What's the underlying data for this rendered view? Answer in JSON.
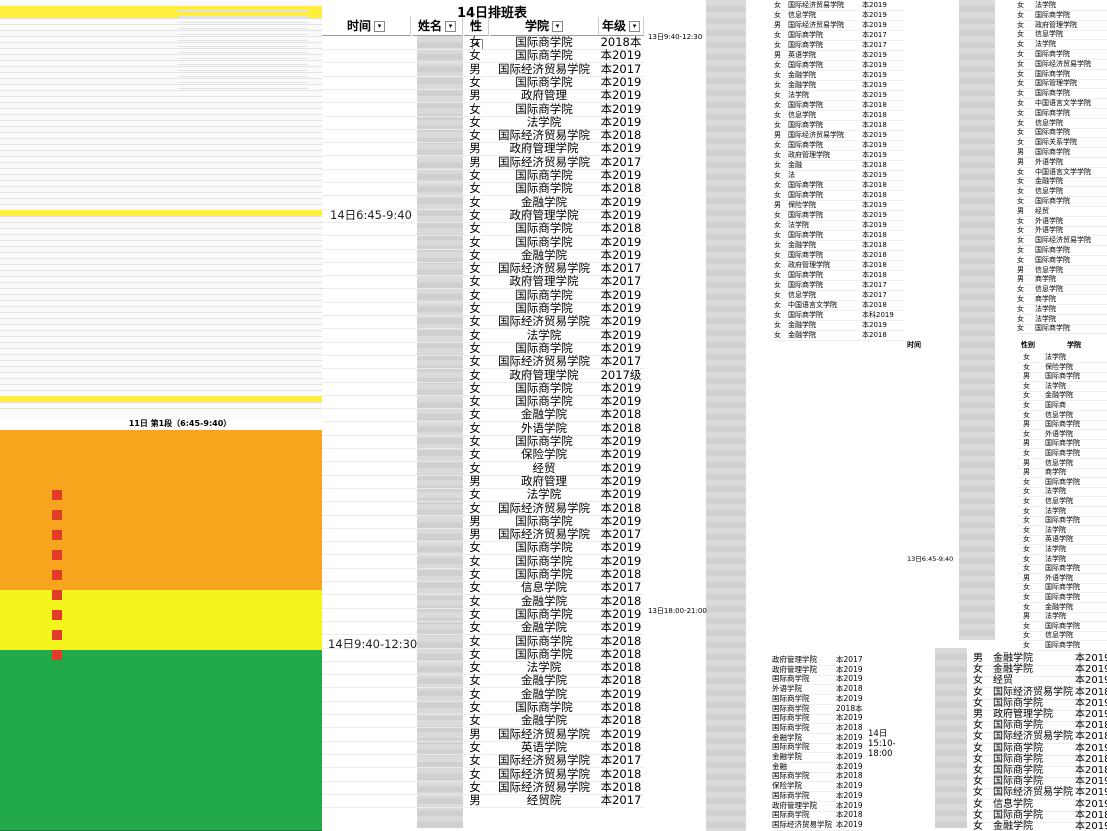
{
  "main": {
    "title": "14日排班表",
    "headers": {
      "time": "时间",
      "name": "姓名",
      "gender": "性",
      "college": "学院",
      "year": "年级"
    },
    "time_blocks": [
      "14日6:45-9:40",
      "14日9:40-12:30"
    ],
    "rows": [
      {
        "g": "女",
        "c": "国际商学院",
        "y": "2018本"
      },
      {
        "g": "女",
        "c": "国际商学院",
        "y": "本2019"
      },
      {
        "g": "男",
        "c": "国际经济贸易学院",
        "y": "本2017"
      },
      {
        "g": "女",
        "c": "国际商学院",
        "y": "本2019"
      },
      {
        "g": "男",
        "c": "政府管理",
        "y": "本2019"
      },
      {
        "g": "女",
        "c": "国际商学院",
        "y": "本2019"
      },
      {
        "g": "女",
        "c": "法学院",
        "y": "本2019"
      },
      {
        "g": "女",
        "c": "国际经济贸易学院",
        "y": "本2018"
      },
      {
        "g": "男",
        "c": "政府管理学院",
        "y": "本2019"
      },
      {
        "g": "男",
        "c": "国际经济贸易学院",
        "y": "本2017"
      },
      {
        "g": "女",
        "c": "国际商学院",
        "y": "本2019"
      },
      {
        "g": "女",
        "c": "国际商学院",
        "y": "本2018"
      },
      {
        "g": "女",
        "c": "金融学院",
        "y": "本2019"
      },
      {
        "g": "女",
        "c": "政府管理学院",
        "y": "本2019"
      },
      {
        "g": "女",
        "c": "国际商学院",
        "y": "本2018"
      },
      {
        "g": "女",
        "c": "国际商学院",
        "y": "本2019"
      },
      {
        "g": "女",
        "c": "金融学院",
        "y": "本2019"
      },
      {
        "g": "女",
        "c": "国际经济贸易学院",
        "y": "本2017"
      },
      {
        "g": "女",
        "c": "政府管理学院",
        "y": "本2017"
      },
      {
        "g": "女",
        "c": "国际商学院",
        "y": "本2019"
      },
      {
        "g": "女",
        "c": "国际商学院",
        "y": "本2019"
      },
      {
        "g": "女",
        "c": "国际经济贸易学院",
        "y": "本2019"
      },
      {
        "g": "女",
        "c": "法学院",
        "y": "本2019"
      },
      {
        "g": "女",
        "c": "国际商学院",
        "y": "本2019"
      },
      {
        "g": "女",
        "c": "国际经济贸易学院",
        "y": "本2017"
      },
      {
        "g": "女",
        "c": "政府管理学院",
        "y": "2017级"
      },
      {
        "g": "女",
        "c": "国际商学院",
        "y": "本2019"
      },
      {
        "g": "女",
        "c": "国际商学院",
        "y": "本2019"
      },
      {
        "g": "女",
        "c": "金融学院",
        "y": "本2018"
      },
      {
        "g": "女",
        "c": "外语学院",
        "y": "本2018"
      },
      {
        "g": "女",
        "c": "国际商学院",
        "y": "本2019"
      },
      {
        "g": "女",
        "c": "保险学院",
        "y": "本2019"
      },
      {
        "g": "女",
        "c": "经贸",
        "y": "本2019"
      },
      {
        "g": "男",
        "c": "政府管理",
        "y": "本2019"
      },
      {
        "g": "女",
        "c": "法学院",
        "y": "本2019"
      },
      {
        "g": "女",
        "c": "国际经济贸易学院",
        "y": "本2018"
      },
      {
        "g": "男",
        "c": "国际商学院",
        "y": "本2019"
      },
      {
        "g": "男",
        "c": "国际经济贸易学院",
        "y": "本2017"
      },
      {
        "g": "女",
        "c": "国际商学院",
        "y": "本2019"
      },
      {
        "g": "女",
        "c": "国际商学院",
        "y": "本2019"
      },
      {
        "g": "女",
        "c": "国际商学院",
        "y": "本2018"
      },
      {
        "g": "女",
        "c": "信息学院",
        "y": "本2017"
      },
      {
        "g": "女",
        "c": "金融学院",
        "y": "本2018"
      },
      {
        "g": "女",
        "c": "国际商学院",
        "y": "本2019"
      },
      {
        "g": "女",
        "c": "金融学院",
        "y": "本2019"
      },
      {
        "g": "女",
        "c": "国际商学院",
        "y": "本2018"
      },
      {
        "g": "女",
        "c": "国际商学院",
        "y": "本2018"
      },
      {
        "g": "女",
        "c": "法学院",
        "y": "本2018"
      },
      {
        "g": "女",
        "c": "金融学院",
        "y": "本2018"
      },
      {
        "g": "女",
        "c": "金融学院",
        "y": "本2019"
      },
      {
        "g": "女",
        "c": "国际商学院",
        "y": "本2018"
      },
      {
        "g": "女",
        "c": "金融学院",
        "y": "本2018"
      },
      {
        "g": "男",
        "c": "国际经济贸易学院",
        "y": "本2019"
      },
      {
        "g": "女",
        "c": "英语学院",
        "y": "本2018"
      },
      {
        "g": "女",
        "c": "国际经济贸易学院",
        "y": "本2017"
      },
      {
        "g": "女",
        "c": "国际经济贸易学院",
        "y": "本2018"
      },
      {
        "g": "女",
        "c": "国际经济贸易学院",
        "y": "本2018"
      },
      {
        "g": "男",
        "c": "经贸院",
        "y": "本2017"
      }
    ]
  },
  "left_bottom": {
    "title": "11日 第1段（6:45-9:40）"
  },
  "right_mid": {
    "time_labels": [
      "13日9:40-12:30",
      "13日18:00-21:00"
    ],
    "rows": [
      {
        "g": "女",
        "c": "国际经济贸易学院",
        "y": "本2019"
      },
      {
        "g": "女",
        "c": "信息学院",
        "y": "本2019"
      },
      {
        "g": "男",
        "c": "国际经济贸易学院",
        "y": "本2019"
      },
      {
        "g": "女",
        "c": "国际商学院",
        "y": "本2017"
      },
      {
        "g": "女",
        "c": "国际商学院",
        "y": "本2017"
      },
      {
        "g": "男",
        "c": "英语学院",
        "y": "本2019"
      },
      {
        "g": "女",
        "c": "国际商学院",
        "y": "本2019"
      },
      {
        "g": "女",
        "c": "金融学院",
        "y": "本2019"
      },
      {
        "g": "女",
        "c": "金融学院",
        "y": "本2019"
      },
      {
        "g": "女",
        "c": "法学院",
        "y": "本2019"
      },
      {
        "g": "女",
        "c": "国际商学院",
        "y": "本2018"
      },
      {
        "g": "女",
        "c": "信息学院",
        "y": "本2018"
      },
      {
        "g": "女",
        "c": "国际商学院",
        "y": "本2018"
      },
      {
        "g": "男",
        "c": "国际经济贸易学院",
        "y": "本2019"
      },
      {
        "g": "女",
        "c": "国际商学院",
        "y": "本2019"
      },
      {
        "g": "女",
        "c": "政府管理学院",
        "y": "本2019"
      },
      {
        "g": "女",
        "c": "金融",
        "y": "本2018"
      },
      {
        "g": "女",
        "c": "法",
        "y": "本2019"
      },
      {
        "g": "女",
        "c": "国际商学院",
        "y": "本2018"
      },
      {
        "g": "女",
        "c": "国际商学院",
        "y": "本2018"
      },
      {
        "g": "男",
        "c": "保险学院",
        "y": "本2019"
      },
      {
        "g": "女",
        "c": "国际商学院",
        "y": "本2019"
      },
      {
        "g": "女",
        "c": "法学院",
        "y": "本2019"
      },
      {
        "g": "女",
        "c": "国际商学院",
        "y": "本2018"
      },
      {
        "g": "女",
        "c": "金融学院",
        "y": "本2018"
      },
      {
        "g": "女",
        "c": "国际商学院",
        "y": "本2018"
      },
      {
        "g": "女",
        "c": "政府管理学院",
        "y": "本2018"
      },
      {
        "g": "女",
        "c": "国际商学院",
        "y": "本2018"
      },
      {
        "g": "女",
        "c": "国际商学院",
        "y": "本2017"
      },
      {
        "g": "女",
        "c": "信息学院",
        "y": "本2017"
      },
      {
        "g": "女",
        "c": "中国语言文学院",
        "y": "本2018"
      },
      {
        "g": "女",
        "c": "国际商学院",
        "y": "本科2019"
      },
      {
        "g": "女",
        "c": "金融学院",
        "y": "本2019"
      },
      {
        "g": "女",
        "c": "金融学院",
        "y": "本2018"
      }
    ]
  },
  "right_bottom": {
    "time_label": "14日15:10-18:00",
    "rows": [
      {
        "c": "政府管理学院",
        "y": "本2017"
      },
      {
        "c": "政府管理学院",
        "y": "本2019"
      },
      {
        "c": "国际商学院",
        "y": "本2019"
      },
      {
        "c": "外语学院",
        "y": "本2018"
      },
      {
        "c": "国际商学院",
        "y": "本2019"
      },
      {
        "c": "国际商学院",
        "y": "2018本"
      },
      {
        "c": "国际商学院",
        "y": "本2019"
      },
      {
        "c": "国际商学院",
        "y": "本2018"
      },
      {
        "c": "金融学院",
        "y": "本2019"
      },
      {
        "c": "国际商学院",
        "y": "本2019"
      },
      {
        "c": "金融学院",
        "y": "本2019"
      },
      {
        "c": "金融",
        "y": "本2019"
      },
      {
        "c": "国际商学院",
        "y": "本2018"
      },
      {
        "c": "保险学院",
        "y": "本2019"
      },
      {
        "c": "国际商学院",
        "y": "本2019"
      },
      {
        "c": "政府管理学院",
        "y": "本2019"
      },
      {
        "c": "国际商学院",
        "y": "本2018"
      },
      {
        "c": "国际经济贸易学院",
        "y": "本2019"
      }
    ]
  },
  "far_right": {
    "header": {
      "time": "时间",
      "gender": "性别",
      "college": "学院"
    },
    "time_label": "13日6:45-9:40",
    "rows_top": [
      {
        "g": "女",
        "c": "法学院"
      },
      {
        "g": "女",
        "c": "国际商学院"
      },
      {
        "g": "女",
        "c": "政府管理学院"
      },
      {
        "g": "女",
        "c": "信息学院"
      },
      {
        "g": "女",
        "c": "法学院"
      },
      {
        "g": "女",
        "c": "国际商学院"
      },
      {
        "g": "女",
        "c": "国际经济贸易学院"
      },
      {
        "g": "女",
        "c": "国际商学院"
      },
      {
        "g": "女",
        "c": "国际管理学院"
      },
      {
        "g": "女",
        "c": "国际商学院"
      },
      {
        "g": "女",
        "c": "中国语言文学学院"
      },
      {
        "g": "女",
        "c": "国际商学院"
      },
      {
        "g": "女",
        "c": "信息学院"
      },
      {
        "g": "女",
        "c": "国际商学院"
      },
      {
        "g": "女",
        "c": "国际关系学院"
      },
      {
        "g": "男",
        "c": "国际商学院"
      },
      {
        "g": "男",
        "c": "外语学院"
      },
      {
        "g": "女",
        "c": "中国语言文学学院"
      },
      {
        "g": "女",
        "c": "金融学院"
      },
      {
        "g": "女",
        "c": "信息学院"
      },
      {
        "g": "女",
        "c": "国际商学院"
      },
      {
        "g": "男",
        "c": "经贸"
      },
      {
        "g": "女",
        "c": "外语学院"
      },
      {
        "g": "女",
        "c": "外语学院"
      },
      {
        "g": "女",
        "c": "国际经济贸易学院"
      },
      {
        "g": "女",
        "c": "国际商学院"
      },
      {
        "g": "女",
        "c": "国际商学院"
      },
      {
        "g": "男",
        "c": "信息学院"
      },
      {
        "g": "男",
        "c": "商学院"
      },
      {
        "g": "女",
        "c": "信息学院"
      },
      {
        "g": "女",
        "c": "商学院"
      },
      {
        "g": "女",
        "c": "法学院"
      },
      {
        "g": "女",
        "c": "法学院"
      },
      {
        "g": "女",
        "c": "国际商学院"
      }
    ],
    "rows_mid": [
      {
        "g": "女",
        "c": "法学院"
      },
      {
        "g": "女",
        "c": "保险学院"
      },
      {
        "g": "男",
        "c": "国际商学院"
      },
      {
        "g": "女",
        "c": "法学院"
      },
      {
        "g": "女",
        "c": "金融学院"
      },
      {
        "g": "女",
        "c": "国际商"
      },
      {
        "g": "女",
        "c": "信息学院"
      },
      {
        "g": "男",
        "c": "国际商学院"
      },
      {
        "g": "女",
        "c": "外语学院"
      },
      {
        "g": "男",
        "c": "国际商学院"
      },
      {
        "g": "女",
        "c": "国际商学院"
      },
      {
        "g": "男",
        "c": "信息学院"
      },
      {
        "g": "男",
        "c": "商学院"
      },
      {
        "g": "女",
        "c": "国际商学院"
      },
      {
        "g": "女",
        "c": "法学院"
      },
      {
        "g": "女",
        "c": "信息学院"
      },
      {
        "g": "女",
        "c": "法学院"
      },
      {
        "g": "女",
        "c": "国际商学院"
      },
      {
        "g": "女",
        "c": "法学院"
      },
      {
        "g": "女",
        "c": "英语学院"
      },
      {
        "g": "女",
        "c": "法学院"
      },
      {
        "g": "女",
        "c": "法学院"
      },
      {
        "g": "女",
        "c": "国际商学院"
      },
      {
        "g": "男",
        "c": "外语学院"
      },
      {
        "g": "女",
        "c": "国际商学院"
      },
      {
        "g": "女",
        "c": "国际商学院"
      },
      {
        "g": "女",
        "c": "金融学院"
      },
      {
        "g": "男",
        "c": "法学院"
      },
      {
        "g": "女",
        "c": "国际商学院"
      },
      {
        "g": "女",
        "c": "信息学院"
      },
      {
        "g": "女",
        "c": "国际商学院"
      }
    ],
    "rows_bottom": [
      {
        "g": "男",
        "c": "金融学院",
        "y": "本2019"
      },
      {
        "g": "女",
        "c": "金融学院",
        "y": "本2019"
      },
      {
        "g": "女",
        "c": "经贸",
        "y": "本2019"
      },
      {
        "g": "女",
        "c": "国际经济贸易学院",
        "y": "本2018"
      },
      {
        "g": "女",
        "c": "国际商学院",
        "y": "本2019"
      },
      {
        "g": "男",
        "c": "政府管理学院",
        "y": "本2019"
      },
      {
        "g": "女",
        "c": "国际商学院",
        "y": "本2018"
      },
      {
        "g": "女",
        "c": "国际经济贸易学院",
        "y": "本2018"
      },
      {
        "g": "女",
        "c": "国际商学院",
        "y": "本2019"
      },
      {
        "g": "女",
        "c": "国际商学院",
        "y": "本2018"
      },
      {
        "g": "女",
        "c": "国际商学院",
        "y": "本2018"
      },
      {
        "g": "女",
        "c": "国际商学院",
        "y": "本2019"
      },
      {
        "g": "女",
        "c": "国际经济贸易学院",
        "y": "本2019"
      },
      {
        "g": "女",
        "c": "信息学院",
        "y": "本2019"
      },
      {
        "g": "女",
        "c": "国际商学院",
        "y": "本2018"
      },
      {
        "g": "女",
        "c": "金融学院",
        "y": "本2019"
      }
    ]
  },
  "colors": {
    "yellow": "#ffef3c",
    "orange": "#f7a51c",
    "light_yellow": "#f5f51e",
    "green": "#22a94a",
    "red": "#e23b2a"
  }
}
